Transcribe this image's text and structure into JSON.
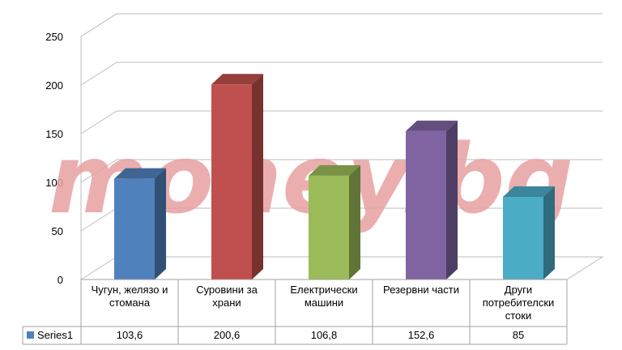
{
  "chart_data": {
    "type": "bar",
    "categories": [
      [
        "Чугун, желязо и",
        "стомана"
      ],
      [
        "Суровини за",
        "храни"
      ],
      [
        "Електрически",
        "машини"
      ],
      [
        "Резервни части"
      ],
      [
        "Други",
        "потребителски",
        "стоки"
      ]
    ],
    "series": [
      {
        "name": "Series1",
        "values": [
          103.6,
          200.6,
          106.8,
          152.6,
          85
        ],
        "value_labels": [
          "103,6",
          "200,6",
          "106,8",
          "152,6",
          "85"
        ]
      }
    ],
    "colors": [
      "#4f81bd",
      "#c0504d",
      "#9bbb59",
      "#8064a2",
      "#4bacc6"
    ],
    "ylim": [
      0,
      250
    ],
    "yticks": [
      0,
      50,
      100,
      150,
      200,
      250
    ],
    "grid": true,
    "data_table": true,
    "legend": "data-table",
    "watermark": "money.bg"
  }
}
